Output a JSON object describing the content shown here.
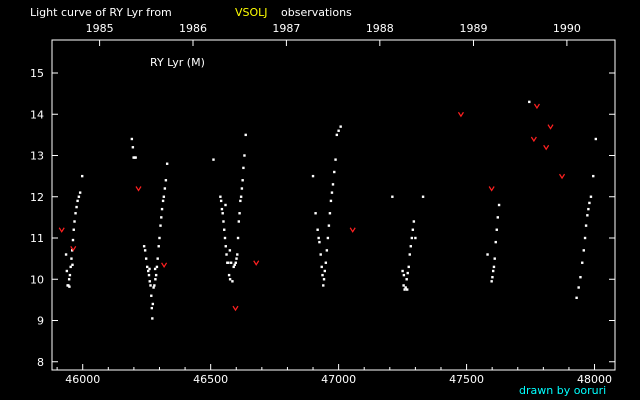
{
  "chart_data": {
    "type": "scatter",
    "title_parts": [
      "Light curve of RY Lyr from",
      "VSOLJ",
      "observations"
    ],
    "subtitle": "RY Lyr (M)",
    "credit": "drawn by ooruri",
    "colors": {
      "background": "#000000",
      "frame": "#ffffff",
      "title_highlight": "#ffff00",
      "credit": "#00ffff",
      "visual_points": "#ffffff",
      "fainter_than": "#ff2020"
    },
    "x_axis": {
      "label": "",
      "range": [
        45880,
        48080
      ],
      "ticks": [
        46000,
        46500,
        47000,
        47500,
        48000
      ],
      "tick_labels": [
        "46000",
        "46500",
        "47000",
        "47500",
        "48000"
      ]
    },
    "year_axis": {
      "years": [
        {
          "label": "1985",
          "jd": 46066
        },
        {
          "label": "1986",
          "jd": 46431
        },
        {
          "label": "1987",
          "jd": 46796
        },
        {
          "label": "1988",
          "jd": 47161
        },
        {
          "label": "1989",
          "jd": 47527
        },
        {
          "label": "1990",
          "jd": 47892
        }
      ]
    },
    "y_axis": {
      "label": "",
      "range": [
        15.8,
        7.8
      ],
      "inverted": true,
      "ticks": [
        8,
        9,
        10,
        11,
        12,
        13,
        14,
        15
      ],
      "tick_labels": [
        "8",
        "9",
        "10",
        "11",
        "12",
        "13",
        "14",
        "15"
      ]
    },
    "series": [
      {
        "marker": "dot",
        "points": [
          [
            45935,
            10.6
          ],
          [
            45938,
            10.2
          ],
          [
            45941,
            9.85
          ],
          [
            45944,
            9.85
          ],
          [
            45947,
            10.0
          ],
          [
            45950,
            10.1
          ],
          [
            45953,
            10.3
          ],
          [
            45956,
            10.5
          ],
          [
            45959,
            10.7
          ],
          [
            45962,
            10.95
          ],
          [
            45965,
            11.2
          ],
          [
            45968,
            11.4
          ],
          [
            45972,
            11.6
          ],
          [
            45976,
            11.75
          ],
          [
            45980,
            11.9
          ],
          [
            45985,
            12.0
          ],
          [
            45990,
            12.1
          ],
          [
            45998,
            12.5
          ],
          [
            45948,
            9.82
          ],
          [
            45960,
            10.35
          ],
          [
            46192,
            13.4
          ],
          [
            46196,
            13.2
          ],
          [
            46199,
            12.95
          ],
          [
            46203,
            12.95
          ],
          [
            46207,
            12.95
          ],
          [
            46240,
            10.8
          ],
          [
            46244,
            10.7
          ],
          [
            46248,
            10.5
          ],
          [
            46252,
            10.3
          ],
          [
            46256,
            10.2
          ],
          [
            46259,
            10.1
          ],
          [
            46262,
            9.95
          ],
          [
            46265,
            9.85
          ],
          [
            46268,
            9.6
          ],
          [
            46270,
            9.3
          ],
          [
            46272,
            9.05
          ],
          [
            46274,
            9.4
          ],
          [
            46277,
            9.8
          ],
          [
            46280,
            9.85
          ],
          [
            46284,
            10.0
          ],
          [
            46287,
            10.1
          ],
          [
            46290,
            10.3
          ],
          [
            46293,
            10.5
          ],
          [
            46297,
            10.8
          ],
          [
            46300,
            11.0
          ],
          [
            46304,
            11.3
          ],
          [
            46307,
            11.5
          ],
          [
            46310,
            11.7
          ],
          [
            46314,
            11.9
          ],
          [
            46317,
            12.0
          ],
          [
            46321,
            12.2
          ],
          [
            46325,
            12.4
          ],
          [
            46330,
            12.8
          ],
          [
            46261,
            10.25
          ],
          [
            46283,
            10.25
          ],
          [
            46511,
            12.9
          ],
          [
            46538,
            12.0
          ],
          [
            46541,
            11.9
          ],
          [
            46544,
            11.7
          ],
          [
            46547,
            11.6
          ],
          [
            46550,
            11.4
          ],
          [
            46553,
            11.2
          ],
          [
            46556,
            11.0
          ],
          [
            46559,
            10.8
          ],
          [
            46562,
            10.6
          ],
          [
            46565,
            10.4
          ],
          [
            46569,
            10.4
          ],
          [
            46572,
            10.1
          ],
          [
            46576,
            10.0
          ],
          [
            46580,
            10.4
          ],
          [
            46585,
            9.95
          ],
          [
            46590,
            10.3
          ],
          [
            46594,
            10.35
          ],
          [
            46598,
            10.4
          ],
          [
            46601,
            10.5
          ],
          [
            46604,
            10.6
          ],
          [
            46607,
            11.0
          ],
          [
            46610,
            11.4
          ],
          [
            46613,
            11.6
          ],
          [
            46616,
            11.9
          ],
          [
            46619,
            12.0
          ],
          [
            46622,
            12.2
          ],
          [
            46625,
            12.4
          ],
          [
            46628,
            12.7
          ],
          [
            46632,
            13.0
          ],
          [
            46637,
            13.5
          ],
          [
            46558,
            11.8
          ],
          [
            46575,
            10.7
          ],
          [
            46900,
            12.5
          ],
          [
            46910,
            11.6
          ],
          [
            46918,
            11.2
          ],
          [
            46922,
            11.0
          ],
          [
            46925,
            10.9
          ],
          [
            46930,
            10.6
          ],
          [
            46934,
            10.3
          ],
          [
            46937,
            10.1
          ],
          [
            46940,
            9.85
          ],
          [
            46943,
            10.0
          ],
          [
            46946,
            10.2
          ],
          [
            46950,
            10.4
          ],
          [
            46954,
            10.7
          ],
          [
            46958,
            11.0
          ],
          [
            46962,
            11.3
          ],
          [
            46966,
            11.6
          ],
          [
            46970,
            11.9
          ],
          [
            46974,
            12.1
          ],
          [
            46978,
            12.3
          ],
          [
            46983,
            12.6
          ],
          [
            46988,
            12.9
          ],
          [
            46993,
            13.5
          ],
          [
            47000,
            13.6
          ],
          [
            47008,
            13.7
          ],
          [
            47210,
            12.0
          ],
          [
            47250,
            10.2
          ],
          [
            47254,
            9.85
          ],
          [
            47258,
            9.75
          ],
          [
            47262,
            9.8
          ],
          [
            47266,
            10.0
          ],
          [
            47270,
            10.15
          ],
          [
            47274,
            10.3
          ],
          [
            47278,
            10.6
          ],
          [
            47282,
            10.8
          ],
          [
            47286,
            11.0
          ],
          [
            47290,
            11.2
          ],
          [
            47294,
            11.4
          ],
          [
            47300,
            11.0
          ],
          [
            47330,
            12.0
          ],
          [
            47255,
            10.1
          ],
          [
            47268,
            9.75
          ],
          [
            47582,
            10.6
          ],
          [
            47598,
            9.95
          ],
          [
            47601,
            10.05
          ],
          [
            47604,
            10.2
          ],
          [
            47607,
            10.3
          ],
          [
            47610,
            10.5
          ],
          [
            47614,
            10.9
          ],
          [
            47618,
            11.2
          ],
          [
            47622,
            11.5
          ],
          [
            47627,
            11.8
          ],
          [
            47745,
            14.3
          ],
          [
            47930,
            9.55
          ],
          [
            47938,
            9.8
          ],
          [
            47945,
            10.05
          ],
          [
            47952,
            10.4
          ],
          [
            47958,
            10.7
          ],
          [
            47963,
            11.0
          ],
          [
            47967,
            11.3
          ],
          [
            47972,
            11.55
          ],
          [
            47976,
            11.7
          ],
          [
            47980,
            11.85
          ],
          [
            47986,
            12.0
          ],
          [
            47995,
            12.5
          ],
          [
            48005,
            13.4
          ]
        ]
      },
      {
        "marker": "v",
        "points": [
          [
            45918,
            11.2
          ],
          [
            45963,
            10.75
          ],
          [
            46218,
            12.2
          ],
          [
            46318,
            10.35
          ],
          [
            46597,
            9.3
          ],
          [
            46678,
            10.4
          ],
          [
            47055,
            11.2
          ],
          [
            47478,
            14.0
          ],
          [
            47598,
            12.2
          ],
          [
            47763,
            13.4
          ],
          [
            47775,
            14.2
          ],
          [
            47811,
            13.2
          ],
          [
            47828,
            13.7
          ],
          [
            47873,
            12.5
          ]
        ]
      }
    ]
  }
}
